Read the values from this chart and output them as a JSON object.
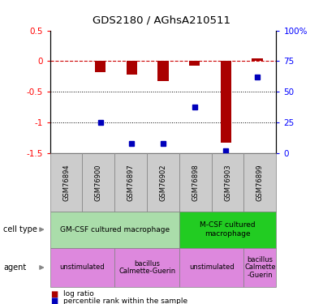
{
  "title": "GDS2180 / AGhsA210511",
  "samples": [
    "GSM76894",
    "GSM76900",
    "GSM76897",
    "GSM76902",
    "GSM76898",
    "GSM76903",
    "GSM76899"
  ],
  "log_ratio": [
    0.0,
    -0.18,
    -0.22,
    -0.32,
    -0.07,
    -1.32,
    0.05
  ],
  "percentile_rank": [
    null,
    25.0,
    8.0,
    8.0,
    38.0,
    2.0,
    62.0
  ],
  "ylim_left": [
    -1.5,
    0.5
  ],
  "ylim_right": [
    0,
    100
  ],
  "right_ticks": [
    0,
    25,
    50,
    75,
    100
  ],
  "right_tick_labels": [
    "0",
    "25",
    "50",
    "75",
    "100%"
  ],
  "left_ticks": [
    -1.5,
    -1.0,
    -0.5,
    0.0,
    0.5
  ],
  "bar_color": "#aa0000",
  "dot_color": "#0000bb",
  "dashed_line_color": "#cc0000",
  "cell_type_groups": [
    {
      "label": "GM-CSF cultured macrophage",
      "start": 0,
      "end": 4,
      "color": "#aaddaa"
    },
    {
      "label": "M-CSF cultured\nmacrophage",
      "start": 4,
      "end": 7,
      "color": "#22cc22"
    }
  ],
  "agent_groups": [
    {
      "label": "unstimulated",
      "start": 0,
      "end": 2,
      "color": "#dd88dd"
    },
    {
      "label": "bacillus\nCalmette-Guerin",
      "start": 2,
      "end": 4,
      "color": "#dd88dd"
    },
    {
      "label": "unstimulated",
      "start": 4,
      "end": 6,
      "color": "#dd88dd"
    },
    {
      "label": "bacillus\nCalmette\n-Guerin",
      "start": 6,
      "end": 7,
      "color": "#dd88dd"
    }
  ],
  "legend_bar_label": "log ratio",
  "legend_dot_label": "percentile rank within the sample",
  "row_label_cell_type": "cell type",
  "row_label_agent": "agent",
  "sample_box_color": "#cccccc",
  "bar_width": 0.35
}
